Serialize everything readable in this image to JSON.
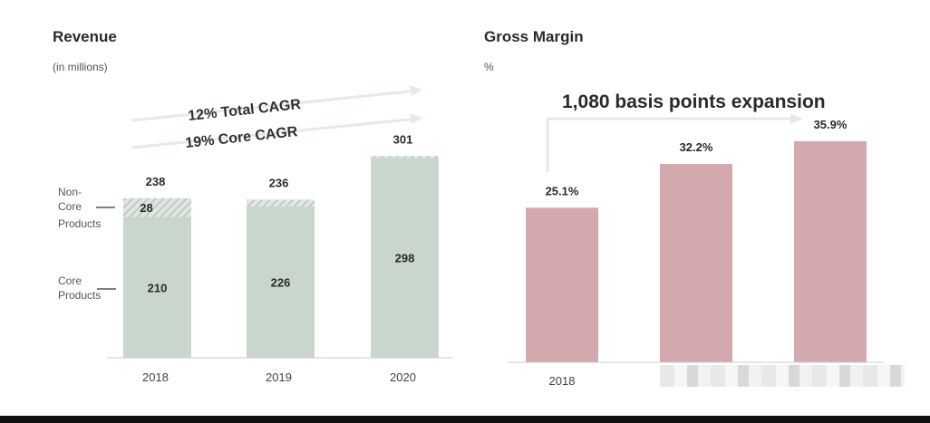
{
  "revenue": {
    "title": "Revenue",
    "subtitle": "(in millions)",
    "cagr_total": "12% Total CAGR",
    "cagr_core": "19% Core CAGR",
    "side_labels": {
      "non_core": [
        "Non-",
        "Core",
        "Products"
      ],
      "core": [
        "Core",
        "Products"
      ]
    }
  },
  "gross_margin": {
    "title": "Gross Margin",
    "subtitle": "%",
    "annotation": "1,080 basis points expansion"
  },
  "colors": {
    "revenue_bar": "#c8d6cb",
    "revenue_hatch": "#a9b8ad",
    "margin_bar": "#d4a9ad",
    "arrow": "#e6ece8"
  },
  "chart_data": [
    {
      "type": "bar",
      "stacked": true,
      "title": "Revenue",
      "ylabel": "(in millions)",
      "categories": [
        "2018",
        "2019",
        "2020"
      ],
      "series": [
        {
          "name": "Core Products",
          "values": [
            210,
            226,
            298
          ]
        },
        {
          "name": "Non-Core Products",
          "values": [
            28,
            10,
            3
          ]
        }
      ],
      "totals": [
        238,
        236,
        301
      ],
      "segment_labels": [
        "210",
        "226",
        "298"
      ],
      "noncore_labels": [
        "28",
        "",
        ""
      ],
      "total_labels": [
        "238",
        "236",
        "301"
      ],
      "ylim": [
        0,
        320
      ]
    },
    {
      "type": "bar",
      "title": "Gross Margin",
      "ylabel": "%",
      "categories": [
        "2018",
        "2019",
        "2020"
      ],
      "values": [
        25.1,
        32.2,
        35.9
      ],
      "value_labels": [
        "25.1%",
        "32.2%",
        "35.9%"
      ],
      "visible_tick_labels": [
        "2018",
        "",
        ""
      ],
      "ylim": [
        0,
        40
      ]
    }
  ]
}
